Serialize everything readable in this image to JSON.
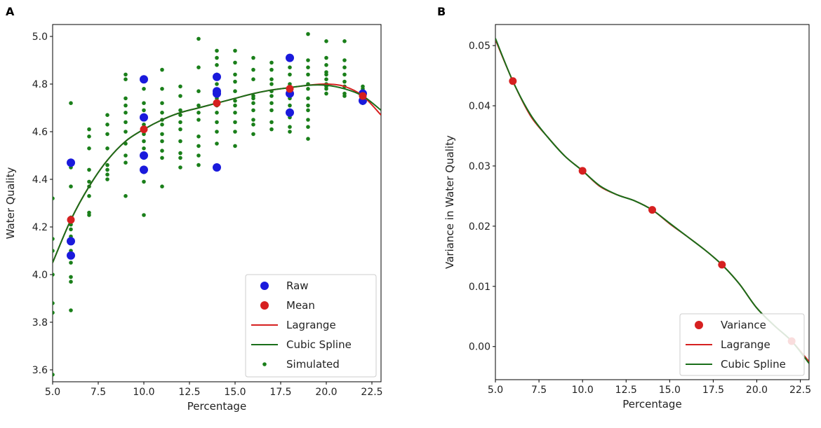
{
  "chart_data": [
    {
      "panel_label": "A",
      "type": "scatter",
      "xlabel": "Percentage",
      "ylabel": "Water Quality",
      "xlim": [
        5.0,
        23.0
      ],
      "ylim": [
        3.55,
        5.05
      ],
      "xticks": [
        5.0,
        7.5,
        10.0,
        12.5,
        15.0,
        17.5,
        20.0,
        22.5
      ],
      "xtick_labels": [
        "5.0",
        "7.5",
        "10.0",
        "12.5",
        "15.0",
        "17.5",
        "20.0",
        "22.5"
      ],
      "yticks": [
        3.6,
        3.8,
        4.0,
        4.2,
        4.4,
        4.6,
        4.8,
        5.0
      ],
      "ytick_labels": [
        "3.6",
        "3.8",
        "4.0",
        "4.2",
        "4.4",
        "4.6",
        "4.8",
        "5.0"
      ],
      "legend_position": "lower-right",
      "legend": [
        "Raw",
        "Mean",
        "Lagrange",
        "Cubic Spline",
        "Simulated"
      ],
      "series": [
        {
          "name": "Simulated",
          "kind": "scatter",
          "color": "#1a7f1a",
          "points": [
            [
              5,
              4.32
            ],
            [
              5,
              4.15
            ],
            [
              5,
              4.1
            ],
            [
              5,
              4.0
            ],
            [
              5,
              3.88
            ],
            [
              5,
              3.84
            ],
            [
              5,
              3.58
            ],
            [
              6,
              4.72
            ],
            [
              6,
              4.47
            ],
            [
              6,
              4.45
            ],
            [
              6,
              4.37
            ],
            [
              6,
              4.24
            ],
            [
              6,
              4.21
            ],
            [
              6,
              4.19
            ],
            [
              6,
              4.16
            ],
            [
              6,
              4.14
            ],
            [
              6,
              4.1
            ],
            [
              6,
              4.05
            ],
            [
              6,
              3.99
            ],
            [
              6,
              3.97
            ],
            [
              6,
              3.85
            ],
            [
              7,
              4.61
            ],
            [
              7,
              4.58
            ],
            [
              7,
              4.53
            ],
            [
              7,
              4.44
            ],
            [
              7,
              4.39
            ],
            [
              7,
              4.37
            ],
            [
              7,
              4.33
            ],
            [
              7,
              4.26
            ],
            [
              7,
              4.25
            ],
            [
              8,
              4.67
            ],
            [
              8,
              4.63
            ],
            [
              8,
              4.59
            ],
            [
              8,
              4.53
            ],
            [
              8,
              4.46
            ],
            [
              8,
              4.44
            ],
            [
              8,
              4.42
            ],
            [
              8,
              4.4
            ],
            [
              9,
              4.84
            ],
            [
              9,
              4.82
            ],
            [
              9,
              4.74
            ],
            [
              9,
              4.71
            ],
            [
              9,
              4.68
            ],
            [
              9,
              4.64
            ],
            [
              9,
              4.6
            ],
            [
              9,
              4.55
            ],
            [
              9,
              4.5
            ],
            [
              9,
              4.47
            ],
            [
              9,
              4.33
            ],
            [
              10,
              4.78
            ],
            [
              10,
              4.72
            ],
            [
              10,
              4.69
            ],
            [
              10,
              4.66
            ],
            [
              10,
              4.63
            ],
            [
              10,
              4.59
            ],
            [
              10,
              4.56
            ],
            [
              10,
              4.53
            ],
            [
              10,
              4.49
            ],
            [
              10,
              4.43
            ],
            [
              10,
              4.39
            ],
            [
              10,
              4.25
            ],
            [
              11,
              4.86
            ],
            [
              11,
              4.78
            ],
            [
              11,
              4.72
            ],
            [
              11,
              4.68
            ],
            [
              11,
              4.65
            ],
            [
              11,
              4.63
            ],
            [
              11,
              4.59
            ],
            [
              11,
              4.56
            ],
            [
              11,
              4.52
            ],
            [
              11,
              4.49
            ],
            [
              11,
              4.37
            ],
            [
              12,
              4.79
            ],
            [
              12,
              4.75
            ],
            [
              12,
              4.69
            ],
            [
              12,
              4.67
            ],
            [
              12,
              4.64
            ],
            [
              12,
              4.61
            ],
            [
              12,
              4.56
            ],
            [
              12,
              4.51
            ],
            [
              12,
              4.49
            ],
            [
              12,
              4.45
            ],
            [
              13,
              4.99
            ],
            [
              13,
              4.87
            ],
            [
              13,
              4.77
            ],
            [
              13,
              4.71
            ],
            [
              13,
              4.68
            ],
            [
              13,
              4.65
            ],
            [
              13,
              4.58
            ],
            [
              13,
              4.54
            ],
            [
              13,
              4.5
            ],
            [
              13,
              4.46
            ],
            [
              14,
              4.94
            ],
            [
              14,
              4.91
            ],
            [
              14,
              4.88
            ],
            [
              14,
              4.84
            ],
            [
              14,
              4.8
            ],
            [
              14,
              4.77
            ],
            [
              14,
              4.74
            ],
            [
              14,
              4.71
            ],
            [
              14,
              4.68
            ],
            [
              14,
              4.64
            ],
            [
              14,
              4.6
            ],
            [
              14,
              4.55
            ],
            [
              15,
              4.94
            ],
            [
              15,
              4.89
            ],
            [
              15,
              4.84
            ],
            [
              15,
              4.81
            ],
            [
              15,
              4.77
            ],
            [
              15,
              4.73
            ],
            [
              15,
              4.71
            ],
            [
              15,
              4.68
            ],
            [
              15,
              4.64
            ],
            [
              15,
              4.6
            ],
            [
              15,
              4.54
            ],
            [
              16,
              4.91
            ],
            [
              16,
              4.86
            ],
            [
              16,
              4.82
            ],
            [
              16,
              4.75
            ],
            [
              16,
              4.74
            ],
            [
              16,
              4.72
            ],
            [
              16,
              4.69
            ],
            [
              16,
              4.65
            ],
            [
              16,
              4.63
            ],
            [
              16,
              4.59
            ],
            [
              17,
              4.89
            ],
            [
              17,
              4.86
            ],
            [
              17,
              4.82
            ],
            [
              17,
              4.8
            ],
            [
              17,
              4.77
            ],
            [
              17,
              4.75
            ],
            [
              17,
              4.72
            ],
            [
              17,
              4.69
            ],
            [
              17,
              4.64
            ],
            [
              17,
              4.61
            ],
            [
              18,
              4.87
            ],
            [
              18,
              4.84
            ],
            [
              18,
              4.8
            ],
            [
              18,
              4.77
            ],
            [
              18,
              4.74
            ],
            [
              18,
              4.71
            ],
            [
              18,
              4.69
            ],
            [
              18,
              4.66
            ],
            [
              18,
              4.62
            ],
            [
              18,
              4.6
            ],
            [
              19,
              5.01
            ],
            [
              19,
              4.9
            ],
            [
              19,
              4.87
            ],
            [
              19,
              4.84
            ],
            [
              19,
              4.8
            ],
            [
              19,
              4.78
            ],
            [
              19,
              4.74
            ],
            [
              19,
              4.71
            ],
            [
              19,
              4.69
            ],
            [
              19,
              4.65
            ],
            [
              19,
              4.62
            ],
            [
              19,
              4.57
            ],
            [
              20,
              4.98
            ],
            [
              20,
              4.91
            ],
            [
              20,
              4.88
            ],
            [
              20,
              4.85
            ],
            [
              20,
              4.84
            ],
            [
              20,
              4.82
            ],
            [
              20,
              4.8
            ],
            [
              20,
              4.79
            ],
            [
              20,
              4.78
            ],
            [
              20,
              4.76
            ],
            [
              21,
              4.98
            ],
            [
              21,
              4.9
            ],
            [
              21,
              4.87
            ],
            [
              21,
              4.84
            ],
            [
              21,
              4.81
            ],
            [
              21,
              4.79
            ],
            [
              21,
              4.76
            ],
            [
              21,
              4.75
            ],
            [
              22,
              4.79
            ],
            [
              22,
              4.78
            ],
            [
              22,
              4.77
            ],
            [
              22,
              4.76
            ],
            [
              22,
              4.75
            ],
            [
              22,
              4.74
            ],
            [
              22,
              4.73
            ],
            [
              22,
              4.72
            ]
          ]
        },
        {
          "name": "Raw",
          "kind": "scatter",
          "color": "#1a1adc",
          "points": [
            [
              6,
              4.47
            ],
            [
              6,
              4.14
            ],
            [
              6,
              4.08
            ],
            [
              10,
              4.82
            ],
            [
              10,
              4.66
            ],
            [
              10,
              4.5
            ],
            [
              10,
              4.44
            ],
            [
              14,
              4.83
            ],
            [
              14,
              4.77
            ],
            [
              14,
              4.76
            ],
            [
              14,
              4.45
            ],
            [
              18,
              4.91
            ],
            [
              18,
              4.76
            ],
            [
              18,
              4.68
            ],
            [
              22,
              4.76
            ],
            [
              22,
              4.73
            ]
          ]
        },
        {
          "name": "Mean",
          "kind": "scatter",
          "color": "#d62020",
          "points": [
            [
              6,
              4.23
            ],
            [
              10,
              4.61
            ],
            [
              14,
              4.72
            ],
            [
              18,
              4.78
            ],
            [
              22,
              4.75
            ]
          ]
        },
        {
          "name": "Lagrange",
          "kind": "line",
          "color": "#d62020",
          "x": [
            5.0,
            6.0,
            7.0,
            8.0,
            9.0,
            10.0,
            11.0,
            12.0,
            13.0,
            14.0,
            15.0,
            16.0,
            17.0,
            18.0,
            19.0,
            20.0,
            21.0,
            22.0,
            23.0
          ],
          "y": [
            4.05,
            4.23,
            4.37,
            4.48,
            4.56,
            4.61,
            4.65,
            4.68,
            4.7,
            4.72,
            4.74,
            4.76,
            4.775,
            4.785,
            4.795,
            4.8,
            4.79,
            4.75,
            4.67
          ]
        },
        {
          "name": "Cubic Spline",
          "kind": "line",
          "color": "#1a6e1a",
          "x": [
            5.0,
            6.0,
            7.0,
            8.0,
            9.0,
            10.0,
            11.0,
            12.0,
            13.0,
            14.0,
            15.0,
            16.0,
            17.0,
            18.0,
            19.0,
            20.0,
            21.0,
            22.0,
            23.0
          ],
          "y": [
            4.05,
            4.23,
            4.37,
            4.48,
            4.56,
            4.61,
            4.65,
            4.68,
            4.7,
            4.72,
            4.74,
            4.76,
            4.775,
            4.785,
            4.795,
            4.795,
            4.78,
            4.75,
            4.69
          ]
        }
      ]
    },
    {
      "panel_label": "B",
      "type": "line",
      "xlabel": "Percentage",
      "ylabel": "Variance in Water Quality",
      "xlim": [
        5.0,
        23.0
      ],
      "ylim": [
        -0.0055,
        0.0535
      ],
      "xticks": [
        5.0,
        7.5,
        10.0,
        12.5,
        15.0,
        17.5,
        20.0,
        22.5
      ],
      "xtick_labels": [
        "5.0",
        "7.5",
        "10.0",
        "12.5",
        "15.0",
        "17.5",
        "20.0",
        "22.5"
      ],
      "yticks": [
        0.0,
        0.01,
        0.02,
        0.03,
        0.04,
        0.05
      ],
      "ytick_labels": [
        "0.00",
        "0.01",
        "0.02",
        "0.03",
        "0.04",
        "0.05"
      ],
      "legend_position": "lower-right",
      "legend": [
        "Variance",
        "Lagrange",
        "Cubic Spline"
      ],
      "series": [
        {
          "name": "Variance",
          "kind": "scatter",
          "color": "#d62020",
          "points": [
            [
              6,
              0.0441
            ],
            [
              10,
              0.0292
            ],
            [
              14,
              0.0227
            ],
            [
              18,
              0.0136
            ],
            [
              22,
              0.0009
            ]
          ]
        },
        {
          "name": "Lagrange",
          "kind": "line",
          "color": "#d62020",
          "x": [
            5.0,
            6.0,
            7.0,
            8.0,
            9.0,
            10.0,
            11.0,
            12.0,
            13.0,
            14.0,
            15.0,
            16.0,
            17.0,
            18.0,
            19.0,
            20.0,
            21.0,
            22.0,
            23.0
          ],
          "y": [
            0.051,
            0.0441,
            0.0384,
            0.0348,
            0.0316,
            0.0292,
            0.0266,
            0.0252,
            0.0242,
            0.0227,
            0.0204,
            0.0183,
            0.0161,
            0.0136,
            0.0104,
            0.0064,
            0.0035,
            0.0009,
            -0.0025
          ]
        },
        {
          "name": "Cubic Spline",
          "kind": "line",
          "color": "#1a6e1a",
          "x": [
            5.0,
            6.0,
            7.0,
            8.0,
            9.0,
            10.0,
            11.0,
            12.0,
            13.0,
            14.0,
            15.0,
            16.0,
            17.0,
            18.0,
            19.0,
            20.0,
            21.0,
            22.0,
            23.0
          ],
          "y": [
            0.0512,
            0.0441,
            0.0386,
            0.0348,
            0.0316,
            0.0292,
            0.0267,
            0.0252,
            0.0242,
            0.0227,
            0.0205,
            0.0183,
            0.0161,
            0.0136,
            0.0104,
            0.0064,
            0.0035,
            0.0009,
            -0.0028
          ]
        }
      ]
    }
  ]
}
